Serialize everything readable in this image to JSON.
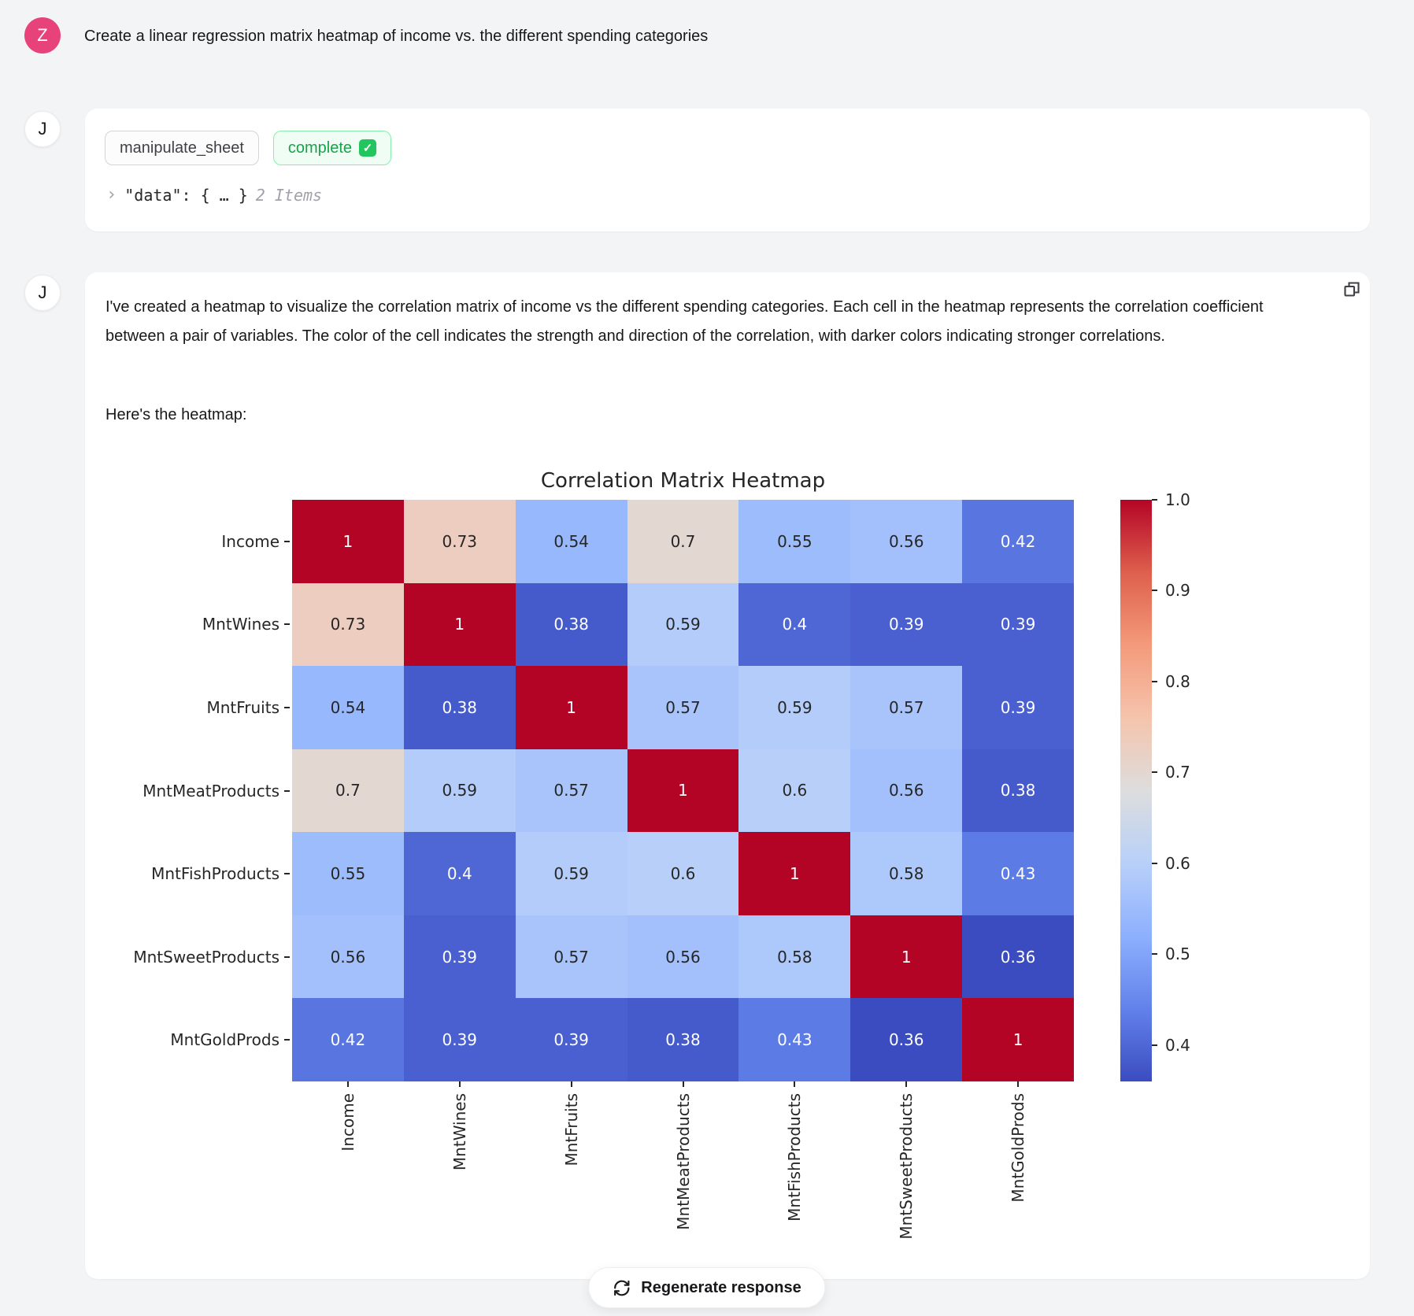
{
  "user_message": {
    "avatar_initial": "Z",
    "text": "Create a linear regression matrix heatmap of income vs. the different spending categories"
  },
  "tool_message": {
    "avatar_initial": "J",
    "tool_name": "manipulate_sheet",
    "status_label": "complete",
    "json_preview": {
      "chevron": "›",
      "code": "\"data\": { … }",
      "meta": "2 Items"
    }
  },
  "assistant_message": {
    "avatar_initial": "J",
    "paragraph": "I've created a heatmap to visualize the correlation matrix of income vs the different spending categories. Each cell in the heatmap represents the correlation coefficient between a pair of variables. The color of the cell indicates the strength and direction of the correlation, with darker colors indicating stronger correlations.",
    "lead_in": "Here's the heatmap:"
  },
  "chart_data": {
    "type": "heatmap",
    "title": "Correlation Matrix Heatmap",
    "labels": [
      "Income",
      "MntWines",
      "MntFruits",
      "MntMeatProducts",
      "MntFishProducts",
      "MntSweetProducts",
      "MntGoldProds"
    ],
    "matrix": [
      [
        1,
        0.73,
        0.54,
        0.7,
        0.55,
        0.56,
        0.42
      ],
      [
        0.73,
        1,
        0.38,
        0.59,
        0.4,
        0.39,
        0.39
      ],
      [
        0.54,
        0.38,
        1,
        0.57,
        0.59,
        0.57,
        0.39
      ],
      [
        0.7,
        0.59,
        0.57,
        1,
        0.6,
        0.56,
        0.38
      ],
      [
        0.55,
        0.4,
        0.59,
        0.6,
        1,
        0.58,
        0.43
      ],
      [
        0.56,
        0.39,
        0.57,
        0.56,
        0.58,
        1,
        0.36
      ],
      [
        0.42,
        0.39,
        0.39,
        0.38,
        0.43,
        0.36,
        1
      ]
    ],
    "colormap": "coolwarm",
    "vmin": 0.36,
    "vmax": 1.0,
    "colorbar_ticks": [
      1.0,
      0.9,
      0.8,
      0.7,
      0.6,
      0.5,
      0.4
    ],
    "legend_position": "right",
    "grid": false
  },
  "footer": {
    "regenerate_label": "Regenerate response"
  },
  "colors": {
    "user_avatar_pink": "#e8427a",
    "status_green": "#16a34a",
    "check_green": "#22c55e",
    "page_background": "#f3f4f6",
    "cmap_low": "#3b4cc0",
    "cmap_mid": "#dddddd",
    "cmap_high": "#b40426"
  }
}
